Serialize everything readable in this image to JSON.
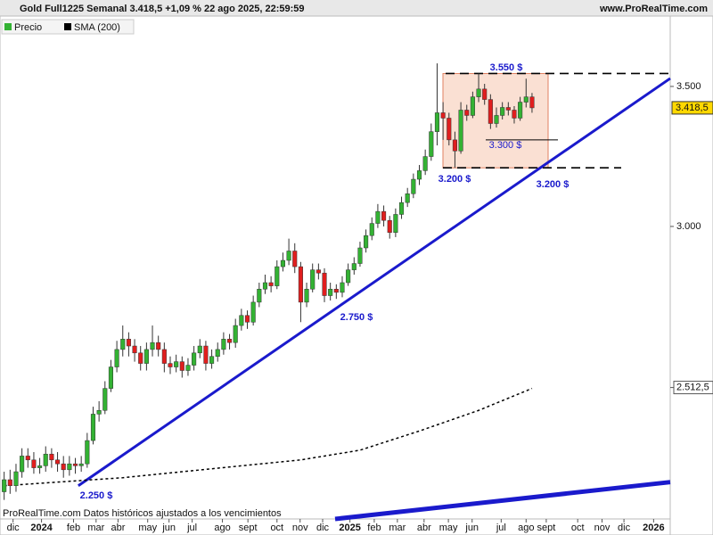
{
  "header": {
    "title": "Gold Full1225 Semanal 3.418,5 +1,09 % 22 ago 2025, 22:59:59",
    "site": "www.ProRealTime.com",
    "footer": "ProRealTime.com  Datos históricos ajustados a los vencimientos"
  },
  "chart_data": {
    "type": "candlestick",
    "log": true,
    "legend": [
      "Precio",
      "SMA (200)"
    ],
    "up_color": "#33b233",
    "down_color": "#e01e1e",
    "xlim": [
      -0.7,
      112.3
    ],
    "ylim": [
      2174,
      3782
    ],
    "yticks": [
      {
        "value": 3500,
        "label": "3.500"
      },
      {
        "value": 3000,
        "label": "3.000"
      },
      {
        "value": 2512.5,
        "label": "2.512,5"
      }
    ],
    "last_price": {
      "value": 3418.5,
      "label": "3.418,5"
    },
    "xticks": [
      {
        "value": 1.5,
        "label": "dic"
      },
      {
        "value": 6.3,
        "label": "2024"
      },
      {
        "value": 11.7,
        "label": "feb"
      },
      {
        "value": 15.5,
        "label": "mar"
      },
      {
        "value": 19.2,
        "label": "abr"
      },
      {
        "value": 24.2,
        "label": "may"
      },
      {
        "value": 27.8,
        "label": "jun"
      },
      {
        "value": 31.7,
        "label": "jul"
      },
      {
        "value": 36.8,
        "label": "ago"
      },
      {
        "value": 41.1,
        "label": "sept"
      },
      {
        "value": 46,
        "label": "oct"
      },
      {
        "value": 49.9,
        "label": "nov"
      },
      {
        "value": 53.7,
        "label": "dic"
      },
      {
        "value": 58.3,
        "label": "2025"
      },
      {
        "value": 62.4,
        "label": "feb"
      },
      {
        "value": 66.3,
        "label": "mar"
      },
      {
        "value": 70.8,
        "label": "abr"
      },
      {
        "value": 74.9,
        "label": "may"
      },
      {
        "value": 78.9,
        "label": "jun"
      },
      {
        "value": 83.8,
        "label": "jul"
      },
      {
        "value": 88,
        "label": "ago"
      },
      {
        "value": 91.4,
        "label": "sept"
      },
      {
        "value": 96.7,
        "label": "oct"
      },
      {
        "value": 100.8,
        "label": "nov"
      },
      {
        "value": 104.5,
        "label": "dic"
      },
      {
        "value": 109.5,
        "label": "2026"
      }
    ],
    "open": [
      2240,
      2270,
      2255,
      2290,
      2330,
      2320,
      2300,
      2305,
      2335,
      2320,
      2310,
      2295,
      2310,
      2305,
      2310,
      2370,
      2440,
      2450,
      2510,
      2570,
      2620,
      2650,
      2630,
      2610,
      2580,
      2620,
      2640,
      2620,
      2580,
      2570,
      2585,
      2560,
      2575,
      2610,
      2630,
      2580,
      2600,
      2620,
      2650,
      2640,
      2690,
      2720,
      2700,
      2760,
      2800,
      2820,
      2810,
      2870,
      2890,
      2920,
      2870,
      2760,
      2800,
      2860,
      2850,
      2780,
      2800,
      2790,
      2820,
      2860,
      2880,
      2930,
      2970,
      3010,
      3050,
      3020,
      2980,
      3040,
      3080,
      3110,
      3160,
      3190,
      3240,
      3330,
      3400,
      3380,
      3300,
      3260,
      3410,
      3390,
      3460,
      3490,
      3450,
      3360,
      3390,
      3420,
      3410,
      3380,
      3440,
      3460
    ],
    "high": [
      2290,
      2295,
      2310,
      2350,
      2350,
      2340,
      2325,
      2355,
      2350,
      2340,
      2330,
      2330,
      2325,
      2330,
      2390,
      2460,
      2475,
      2530,
      2590,
      2645,
      2690,
      2670,
      2650,
      2630,
      2640,
      2690,
      2660,
      2640,
      2600,
      2605,
      2600,
      2595,
      2630,
      2650,
      2645,
      2620,
      2640,
      2670,
      2665,
      2710,
      2740,
      2735,
      2780,
      2820,
      2845,
      2840,
      2890,
      2915,
      2960,
      2945,
      2885,
      2820,
      2880,
      2880,
      2865,
      2820,
      2815,
      2840,
      2880,
      2900,
      2950,
      2990,
      3030,
      3075,
      3070,
      3035,
      3060,
      3100,
      3130,
      3180,
      3210,
      3265,
      3360,
      3590,
      3440,
      3400,
      3330,
      3440,
      3430,
      3480,
      3550,
      3510,
      3470,
      3420,
      3440,
      3440,
      3425,
      3460,
      3530,
      3475
    ],
    "low": [
      2220,
      2235,
      2240,
      2275,
      2300,
      2285,
      2285,
      2290,
      2300,
      2290,
      2275,
      2280,
      2285,
      2290,
      2300,
      2360,
      2420,
      2440,
      2500,
      2555,
      2600,
      2600,
      2585,
      2560,
      2560,
      2600,
      2600,
      2555,
      2550,
      2555,
      2540,
      2545,
      2560,
      2595,
      2560,
      2565,
      2585,
      2605,
      2620,
      2625,
      2675,
      2680,
      2690,
      2745,
      2785,
      2790,
      2800,
      2855,
      2875,
      2850,
      2700,
      2745,
      2790,
      2830,
      2760,
      2765,
      2770,
      2775,
      2810,
      2845,
      2870,
      2915,
      2955,
      2995,
      3000,
      2960,
      2965,
      3025,
      3065,
      3095,
      3140,
      3175,
      3225,
      3280,
      3300,
      3280,
      3200,
      3250,
      3370,
      3380,
      3440,
      3430,
      3340,
      3345,
      3375,
      3390,
      3360,
      3370,
      3420,
      3400
    ],
    "close": [
      2270,
      2255,
      2290,
      2330,
      2320,
      2300,
      2305,
      2335,
      2320,
      2310,
      2295,
      2310,
      2305,
      2310,
      2370,
      2440,
      2450,
      2510,
      2570,
      2620,
      2650,
      2630,
      2610,
      2580,
      2620,
      2640,
      2620,
      2580,
      2570,
      2585,
      2560,
      2575,
      2610,
      2630,
      2580,
      2600,
      2620,
      2650,
      2640,
      2690,
      2720,
      2700,
      2760,
      2800,
      2820,
      2810,
      2870,
      2890,
      2920,
      2870,
      2760,
      2800,
      2860,
      2850,
      2780,
      2800,
      2790,
      2820,
      2860,
      2880,
      2930,
      2970,
      3010,
      3050,
      3020,
      2980,
      3040,
      3080,
      3110,
      3160,
      3190,
      3240,
      3330,
      3400,
      3380,
      3300,
      3260,
      3410,
      3390,
      3460,
      3490,
      3450,
      3360,
      3390,
      3420,
      3410,
      3380,
      3440,
      3460,
      3418.5
    ],
    "sma": {
      "x": [
        0,
        10,
        20,
        30,
        40,
        50,
        60,
        70,
        80,
        89
      ],
      "values": [
        2255,
        2265,
        2275,
        2290,
        2305,
        2320,
        2345,
        2395,
        2450,
        2510
      ]
    },
    "trendlines": [
      {
        "x": [
          12.5,
          112.3
        ],
        "values": [
          2255,
          3531
        ]
      },
      {
        "x": [
          55.8,
          112.3
        ],
        "values": [
          2174,
          2264
        ]
      }
    ],
    "levels": [
      3550,
      3300,
      3200
    ],
    "annotations": [
      "3.550 $",
      "3.300 $",
      "3.200 $",
      "3.200 $",
      "2.750 $",
      "2.250 $"
    ]
  }
}
